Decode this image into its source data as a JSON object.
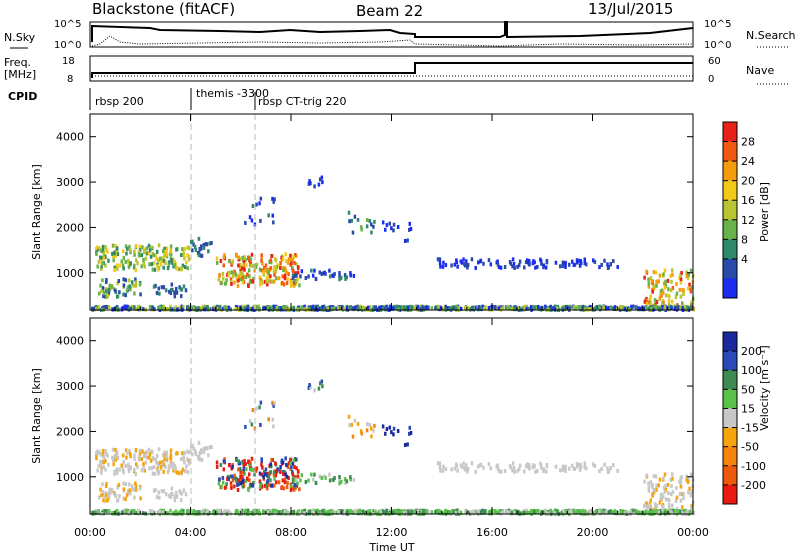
{
  "header": {
    "station": "Blackstone (fitACF)",
    "beam": "Beam 22",
    "date": "13/Jul/2015"
  },
  "top_strip": {
    "left_label": "N.Sky",
    "right_label": "N.Search",
    "left_ticks": [
      "10^5",
      "10^0"
    ],
    "right_ticks": [
      "10^5",
      "10^0"
    ]
  },
  "freq_strip": {
    "left_label_1": "Freq.",
    "left_label_2": "[MHz]",
    "right_label": "Nave",
    "left_ticks": [
      "18",
      "8"
    ],
    "right_ticks": [
      "60",
      "0"
    ]
  },
  "cpid": {
    "label": "CPID",
    "segments": [
      "rbsp 200",
      "themis -3300",
      "rbsp CT-trig 220"
    ]
  },
  "chart_data": [
    {
      "type": "heatmap",
      "name": "power",
      "ylabel": "Slant Range [km]",
      "colorbar_label": "Power [dB]",
      "colorbar_ticks": [
        "28",
        "24",
        "20",
        "16",
        "12",
        "8",
        "4"
      ],
      "colorbar_colors": [
        "#e8201a",
        "#f25a12",
        "#f59c0c",
        "#f2c819",
        "#b8c530",
        "#68b24a",
        "#2f8a6b",
        "#2a4aa8",
        "#1a2cf0"
      ],
      "y_ticks": [
        "4000",
        "3000",
        "2000",
        "1000"
      ],
      "y_tick_values": [
        4000,
        3000,
        2000,
        1000
      ],
      "ylim": [
        180,
        4500
      ],
      "xlim": [
        0,
        24
      ]
    },
    {
      "type": "heatmap",
      "name": "velocity",
      "ylabel": "Slant Range [km]",
      "colorbar_label": "Velocity [m s⁻¹]",
      "colorbar_ticks": [
        "200",
        "100",
        "50",
        "15",
        "-15",
        "-50",
        "-100",
        "-200"
      ],
      "colorbar_colors": [
        "#1a2a9c",
        "#2a4ab8",
        "#3f8a52",
        "#5ac24a",
        "#c8c8c8",
        "#f5a40c",
        "#f5840c",
        "#ee5a0c",
        "#e81a12"
      ],
      "y_ticks": [
        "4000",
        "3000",
        "2000",
        "1000"
      ],
      "y_tick_values": [
        4000,
        3000,
        2000,
        1000
      ],
      "ylim": [
        180,
        4500
      ],
      "xlim": [
        0,
        24
      ]
    }
  ],
  "x_axis": {
    "label": "Time UT",
    "ticks": [
      "00:00",
      "04:00",
      "08:00",
      "12:00",
      "16:00",
      "20:00",
      "00:00"
    ],
    "tick_values": [
      0,
      4,
      8,
      12,
      16,
      20,
      24
    ]
  }
}
